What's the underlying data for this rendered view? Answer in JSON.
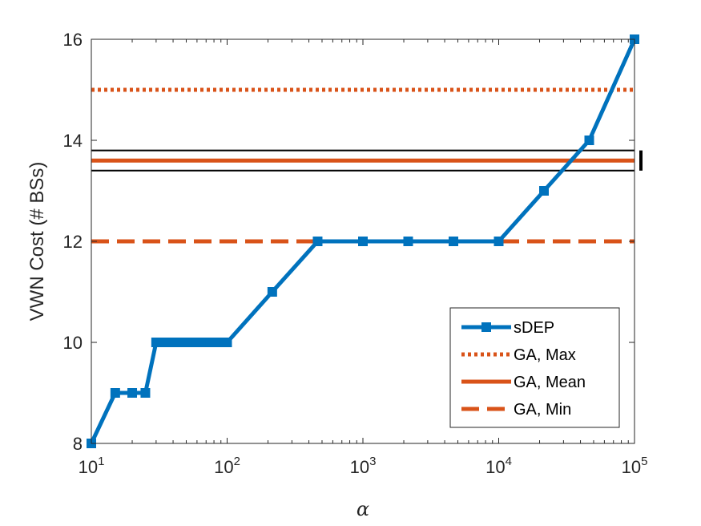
{
  "chart_data": {
    "type": "line",
    "xlabel": "α",
    "ylabel": "VWN Cost (# BSs)",
    "x_scale": "log",
    "xlim": [
      10,
      100000
    ],
    "ylim": [
      8,
      16
    ],
    "x_ticks": [
      {
        "base": "10",
        "exp": "1"
      },
      {
        "base": "10",
        "exp": "2"
      },
      {
        "base": "10",
        "exp": "3"
      },
      {
        "base": "10",
        "exp": "4"
      },
      {
        "base": "10",
        "exp": "5"
      }
    ],
    "y_ticks": [
      "8",
      "10",
      "12",
      "14",
      "16"
    ],
    "grid": false,
    "legend_position": "bottom-right",
    "series": [
      {
        "name": "sDEP",
        "style": "solid-square-markers",
        "color": "#0072BD",
        "x": [
          10,
          15,
          20,
          25,
          30,
          35,
          40,
          45,
          50,
          55,
          60,
          65,
          70,
          75,
          80,
          85,
          90,
          95,
          100,
          215,
          464,
          1000,
          2154,
          4642,
          10000,
          21544,
          46416,
          100000
        ],
        "y": [
          8,
          9,
          9,
          9,
          10,
          10,
          10,
          10,
          10,
          10,
          10,
          10,
          10,
          10,
          10,
          10,
          10,
          10,
          10,
          11,
          12,
          12,
          12,
          12,
          12,
          13,
          14,
          16
        ]
      },
      {
        "name": "GA, Max",
        "style": "dotted",
        "color": "#D95319",
        "y": 15
      },
      {
        "name": "GA, Mean",
        "style": "solid",
        "color": "#D95319",
        "y": 13.6,
        "band": [
          13.4,
          13.8
        ],
        "band_color": "#000000"
      },
      {
        "name": "GA, Min",
        "style": "dashed",
        "color": "#D95319",
        "y": 12
      }
    ]
  }
}
